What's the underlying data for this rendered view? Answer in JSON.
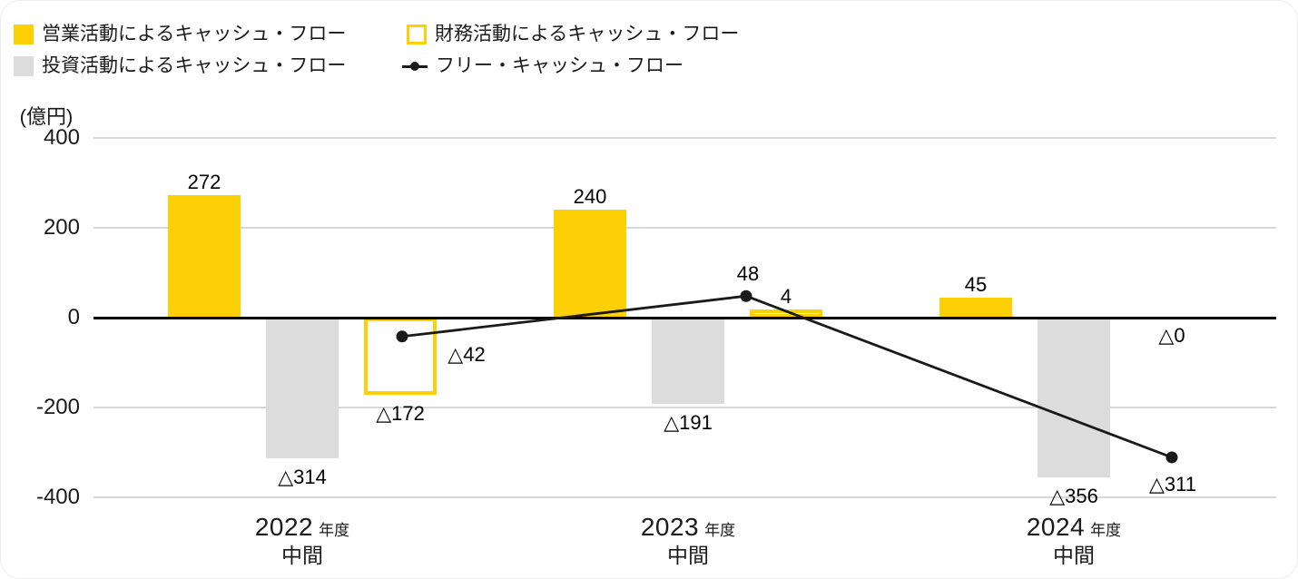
{
  "chart_data": {
    "type": "combo-bar-line",
    "title": "",
    "unit_label": "(億円)",
    "categories": [
      {
        "year": "2022",
        "year_suffix": "年度",
        "sub": "中間"
      },
      {
        "year": "2023",
        "year_suffix": "年度",
        "sub": "中間"
      },
      {
        "year": "2024",
        "year_suffix": "年度",
        "sub": "中間"
      }
    ],
    "y_axis": {
      "ticks": [
        400,
        200,
        0,
        -200,
        -400
      ],
      "range": [
        -400,
        400
      ],
      "grid": true
    },
    "series": [
      {
        "name": "営業活動によるキャッシュ・フロー",
        "type": "bar",
        "style": "filled",
        "color": "#fcd004",
        "values": [
          272,
          240,
          45
        ],
        "labels": [
          "272",
          "240",
          "45"
        ]
      },
      {
        "name": "投資活動によるキャッシュ・フロー",
        "type": "bar",
        "style": "filled",
        "color": "#dcdcdc",
        "values": [
          -314,
          -191,
          -356
        ],
        "labels": [
          "△314",
          "△191",
          "△356"
        ]
      },
      {
        "name": "財務活動によるキャッシュ・フロー",
        "type": "bar",
        "style": "outlined",
        "color": "#fcd004",
        "values": [
          -172,
          4,
          0
        ],
        "labels": [
          "△172",
          "4",
          "△0"
        ]
      },
      {
        "name": "フリー・キャッシュ・フロー",
        "type": "line",
        "color": "#1a1a1a",
        "values": [
          -42,
          48,
          -311
        ],
        "labels": [
          "△42",
          "48",
          "△311"
        ]
      }
    ],
    "colors": {
      "operating_fill": "#fcd004",
      "investing_fill": "#dcdcdc",
      "financing_border": "#fcd004",
      "free_cash_flow_line": "#1a1a1a",
      "gridline": "#d8d8d8",
      "zero_line": "#000000"
    },
    "legend_position": "top-left"
  }
}
